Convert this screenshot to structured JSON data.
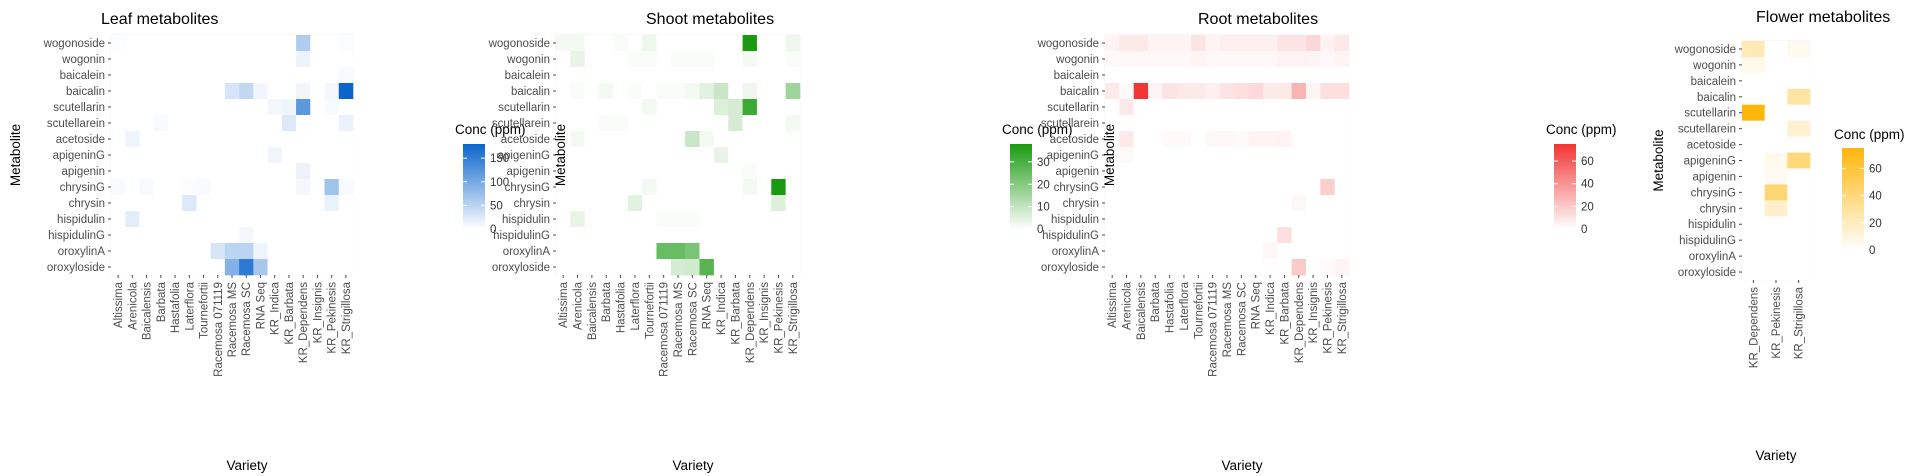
{
  "chart_data": [
    {
      "type": "heatmap",
      "title": "Leaf metabolites",
      "xlabel": "Variety",
      "ylabel": "Metabolite",
      "x": [
        "Altissima",
        "Arenicola",
        "Baicalensis",
        "Barbata",
        "Hastafolia",
        "Laterflora",
        "Tournefortii",
        "Racemosa 071119",
        "Racemosa MS",
        "Racemosa SC",
        "RNA Seq",
        "KR_Indica",
        "KR_Barbata",
        "KR_Dependens",
        "KR_Insignis",
        "KR_Pekinesis",
        "KR_Strigillosa"
      ],
      "y": [
        "wogonoside",
        "wogonin",
        "baicalein",
        "baicalin",
        "scutellarin",
        "scutellarein",
        "acetoside",
        "apigeninG",
        "apigenin",
        "chrysinG",
        "chrysin",
        "hispidulin",
        "hispidulinG",
        "oroxylinA",
        "oroxyloside"
      ],
      "values": [
        [
          2,
          0,
          0,
          0,
          0,
          0,
          0,
          0,
          0,
          0,
          0,
          0,
          0,
          58,
          0,
          0,
          3
        ],
        [
          0,
          0,
          0,
          0,
          0,
          0,
          0,
          0,
          0,
          0,
          0,
          0,
          0,
          14,
          0,
          0,
          0
        ],
        [
          0,
          0,
          0,
          0,
          0,
          0,
          0,
          0,
          0,
          0,
          0,
          0,
          0,
          0,
          0,
          0,
          5
        ],
        [
          0,
          0,
          0,
          0,
          0,
          0,
          0,
          0,
          30,
          45,
          10,
          0,
          0,
          10,
          0,
          8,
          180
        ],
        [
          0,
          0,
          0,
          0,
          0,
          0,
          0,
          0,
          0,
          0,
          0,
          8,
          12,
          120,
          0,
          5,
          0
        ],
        [
          0,
          0,
          0,
          5,
          0,
          0,
          0,
          0,
          0,
          0,
          0,
          0,
          25,
          0,
          0,
          0,
          15
        ],
        [
          0,
          12,
          0,
          0,
          0,
          0,
          0,
          0,
          0,
          0,
          0,
          0,
          0,
          0,
          0,
          0,
          0
        ],
        [
          0,
          0,
          0,
          0,
          0,
          0,
          0,
          0,
          0,
          0,
          0,
          10,
          0,
          0,
          0,
          0,
          0
        ],
        [
          0,
          0,
          0,
          0,
          0,
          0,
          0,
          0,
          0,
          0,
          0,
          0,
          0,
          14,
          0,
          0,
          0
        ],
        [
          5,
          0,
          6,
          0,
          0,
          3,
          5,
          0,
          0,
          0,
          0,
          0,
          0,
          8,
          0,
          70,
          5
        ],
        [
          0,
          0,
          0,
          0,
          0,
          25,
          0,
          0,
          0,
          0,
          0,
          0,
          0,
          0,
          0,
          16,
          0
        ],
        [
          0,
          20,
          0,
          0,
          0,
          0,
          0,
          0,
          0,
          0,
          0,
          0,
          0,
          0,
          0,
          0,
          0
        ],
        [
          0,
          0,
          0,
          0,
          0,
          0,
          0,
          0,
          0,
          8,
          0,
          0,
          0,
          0,
          0,
          0,
          0
        ],
        [
          0,
          0,
          0,
          0,
          0,
          0,
          0,
          30,
          50,
          50,
          12,
          0,
          0,
          0,
          0,
          0,
          0
        ],
        [
          0,
          0,
          0,
          0,
          0,
          0,
          0,
          0,
          90,
          155,
          65,
          0,
          0,
          0,
          0,
          0,
          0
        ]
      ],
      "colorbar": {
        "title": "Conc (ppm)",
        "min": 0,
        "max": 180,
        "ticks": [
          0,
          50,
          100,
          150
        ],
        "low_color": "#ffffff",
        "high_color": "#0a64cc"
      },
      "legend": "right"
    },
    {
      "type": "heatmap",
      "title": "Shoot metabolites",
      "xlabel": "Variety",
      "ylabel": "Metabolite",
      "x": [
        "Altissima",
        "Arenicola",
        "Baicalensis",
        "Barbata",
        "Hastafolia",
        "Laterflora",
        "Tournefortii",
        "Racemosa 071119",
        "Racemosa MS",
        "Racemosa SC",
        "RNA Seq",
        "KR_Indica",
        "KR_Barbata",
        "KR_Dependens",
        "KR_Insignis",
        "KR_Pekinesis",
        "KR_Strigillosa"
      ],
      "y": [
        "wogonoside",
        "wogonin",
        "baicalein",
        "baicalin",
        "scutellarin",
        "scutellarein",
        "acetoside",
        "apigeninG",
        "apigenin",
        "chrysinG",
        "chrysin",
        "hispidulin",
        "hispidulinG",
        "oroxylinA",
        "oroxyloside"
      ],
      "values": [
        [
          2,
          2,
          0,
          0,
          1,
          0,
          3,
          0,
          0,
          0,
          0,
          0,
          0,
          38,
          0,
          0,
          3
        ],
        [
          0,
          4,
          0,
          0,
          0,
          1,
          1,
          0,
          1,
          1,
          1,
          0,
          0,
          2,
          0,
          0,
          1
        ],
        [
          0,
          0,
          0,
          0,
          0,
          0,
          0,
          0,
          0,
          0,
          0,
          0,
          0,
          0,
          0,
          0,
          0
        ],
        [
          0,
          1,
          0,
          2,
          0,
          1,
          0,
          1,
          1,
          2,
          5,
          9,
          0,
          3,
          0,
          0,
          16
        ],
        [
          0,
          0,
          0,
          0,
          0,
          0,
          2,
          0,
          0,
          0,
          0,
          6,
          7,
          32,
          0,
          0,
          0
        ],
        [
          0,
          0,
          0,
          1,
          1,
          0,
          0,
          0,
          0,
          0,
          0,
          0,
          7,
          0,
          0,
          0,
          2
        ],
        [
          0,
          2,
          0,
          0,
          0,
          0,
          0,
          0,
          0,
          9,
          2,
          0,
          0,
          0,
          0,
          0,
          0
        ],
        [
          0,
          0,
          0,
          0,
          0,
          0,
          0,
          0,
          0,
          0,
          0,
          4,
          0,
          0,
          0,
          0,
          0
        ],
        [
          0,
          0,
          0,
          0,
          0,
          0,
          0,
          0,
          0,
          0,
          0,
          0,
          0,
          1,
          0,
          0,
          0
        ],
        [
          0,
          0,
          0,
          0,
          0,
          0,
          2,
          0,
          0,
          0,
          0,
          0,
          0,
          2,
          0,
          38,
          0
        ],
        [
          0,
          0,
          0,
          0,
          0,
          5,
          0,
          0,
          0,
          0,
          0,
          0,
          0,
          0,
          0,
          6,
          0
        ],
        [
          0,
          4,
          0,
          0,
          0,
          0,
          0,
          1,
          1,
          1,
          0,
          0,
          0,
          0,
          0,
          0,
          0
        ],
        [
          0,
          0,
          0,
          0,
          0,
          0,
          0,
          0,
          0,
          0,
          0,
          0,
          0,
          0,
          0,
          0,
          0
        ],
        [
          0,
          0,
          0,
          0,
          0,
          0,
          0,
          25,
          25,
          22,
          0,
          0,
          0,
          0,
          0,
          0,
          0
        ],
        [
          0,
          0,
          0,
          0,
          0,
          0,
          0,
          0,
          7,
          8,
          28,
          0,
          0,
          0,
          0,
          0,
          0
        ]
      ],
      "colorbar": {
        "title": "Conc (ppm)",
        "min": 0,
        "max": 38,
        "ticks": [
          0,
          10,
          20,
          30
        ],
        "low_color": "#ffffff",
        "high_color": "#1a9a10"
      },
      "legend": "right"
    },
    {
      "type": "heatmap",
      "title": "Root metabolites",
      "xlabel": "Variety",
      "ylabel": "Metabolite",
      "x": [
        "Altissima",
        "Arenicola",
        "Baicalensis",
        "Barbata",
        "Hastafolia",
        "Laterflora",
        "Tournefortii",
        "Racemosa 071119",
        "Racemosa MS",
        "Racemosa SC",
        "RNA Seq",
        "KR_Indica",
        "KR_Barbata",
        "KR_Dependens",
        "KR_Insignis",
        "KR_Pekinesis",
        "KR_Strigillosa"
      ],
      "y": [
        "wogonoside",
        "wogonin",
        "baicalein",
        "baicalin",
        "scutellarin",
        "scutellarein",
        "acetoside",
        "apigeninG",
        "apigenin",
        "chrysinG",
        "chrysin",
        "hispidulin",
        "hispidulinG",
        "oroxylinA",
        "oroxyloside"
      ],
      "values": [
        [
          4,
          8,
          8,
          4,
          4,
          4,
          10,
          4,
          6,
          6,
          6,
          6,
          10,
          10,
          15,
          5,
          8
        ],
        [
          2,
          3,
          3,
          3,
          3,
          3,
          4,
          3,
          3,
          3,
          3,
          3,
          5,
          5,
          4,
          3,
          4
        ],
        [
          0,
          0,
          0,
          0,
          0,
          0,
          0,
          0,
          0,
          0,
          0,
          0,
          0,
          0,
          0,
          0,
          0
        ],
        [
          8,
          2,
          75,
          4,
          10,
          8,
          8,
          6,
          10,
          12,
          14,
          8,
          8,
          28,
          4,
          12,
          12
        ],
        [
          0,
          8,
          0,
          0,
          0,
          0,
          0,
          0,
          0,
          0,
          0,
          0,
          0,
          0,
          0,
          0,
          0
        ],
        [
          0,
          0,
          0,
          0,
          0,
          0,
          0,
          0,
          0,
          0,
          0,
          0,
          0,
          0,
          0,
          0,
          0
        ],
        [
          0,
          8,
          0,
          0,
          2,
          2,
          0,
          3,
          3,
          2,
          4,
          4,
          5,
          0,
          0,
          0,
          0
        ],
        [
          0,
          2,
          0,
          0,
          0,
          0,
          0,
          0,
          0,
          0,
          0,
          0,
          0,
          0,
          0,
          0,
          0
        ],
        [
          0,
          0,
          0,
          0,
          0,
          0,
          0,
          0,
          0,
          0,
          0,
          0,
          0,
          0,
          0,
          0,
          0
        ],
        [
          0,
          0,
          0,
          0,
          0,
          0,
          0,
          0,
          0,
          0,
          0,
          0,
          0,
          0,
          0,
          18,
          0
        ],
        [
          0,
          0,
          0,
          0,
          0,
          0,
          0,
          0,
          0,
          0,
          0,
          0,
          0,
          3,
          0,
          0,
          0
        ],
        [
          0,
          0,
          0,
          0,
          0,
          0,
          0,
          0,
          0,
          0,
          0,
          0,
          0,
          0,
          0,
          0,
          0
        ],
        [
          0,
          0,
          0,
          0,
          0,
          0,
          0,
          0,
          0,
          0,
          0,
          0,
          12,
          0,
          0,
          0,
          0
        ],
        [
          0,
          0,
          0,
          0,
          0,
          0,
          0,
          0,
          0,
          0,
          0,
          3,
          0,
          0,
          0,
          0,
          0
        ],
        [
          0,
          0,
          0,
          0,
          0,
          0,
          0,
          0,
          0,
          0,
          0,
          0,
          0,
          20,
          0,
          2,
          4
        ]
      ],
      "colorbar": {
        "title": "Conc (ppm)",
        "min": 0,
        "max": 75,
        "ticks": [
          0,
          20,
          40,
          60
        ],
        "low_color": "#ffffff",
        "high_color": "#f23535"
      },
      "legend": "right"
    },
    {
      "type": "heatmap",
      "title": "Flower metabolites",
      "xlabel": "Variety",
      "ylabel": "Metabolite",
      "x": [
        "KR_Dependens",
        "KR_Pekinesis",
        "KR_Strigillosa"
      ],
      "y": [
        "wogonoside",
        "wogonin",
        "baicalein",
        "baicalin",
        "scutellarin",
        "scutellarein",
        "acetoside",
        "apigeninG",
        "apigenin",
        "chrysinG",
        "chrysin",
        "hispidulin",
        "hispidulinG",
        "oroxylinA",
        "oroxyloside"
      ],
      "values": [
        [
          22,
          0,
          5
        ],
        [
          6,
          0,
          0
        ],
        [
          0,
          0,
          0
        ],
        [
          0,
          0,
          28
        ],
        [
          75,
          0,
          0
        ],
        [
          0,
          0,
          14
        ],
        [
          0,
          0,
          0
        ],
        [
          0,
          6,
          40
        ],
        [
          0,
          4,
          0
        ],
        [
          0,
          42,
          0
        ],
        [
          0,
          16,
          0
        ],
        [
          0,
          0,
          0
        ],
        [
          0,
          0,
          0
        ],
        [
          0,
          0,
          0
        ],
        [
          0,
          0,
          0
        ]
      ],
      "colorbar": {
        "title": "Conc (ppm)",
        "min": 0,
        "max": 75,
        "ticks": [
          0,
          20,
          40,
          60
        ],
        "low_color": "#ffffff",
        "high_color": "#ffb60a"
      },
      "legend": "right"
    }
  ]
}
